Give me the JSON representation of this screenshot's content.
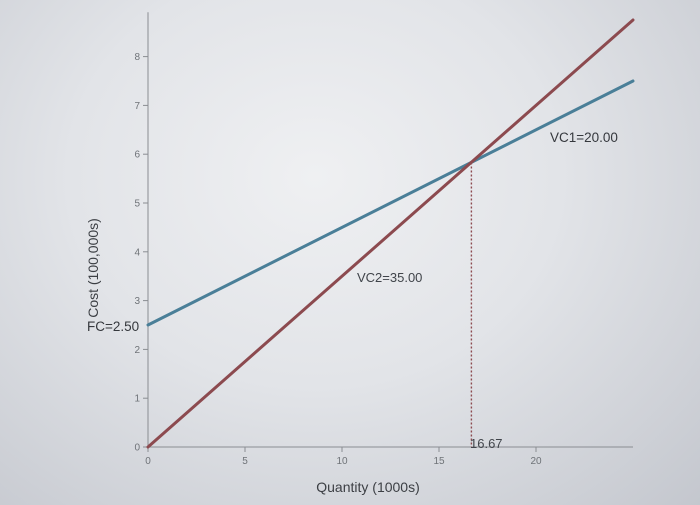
{
  "chart_data": {
    "type": "line",
    "xlabel": "Quantity (1000s)",
    "ylabel": "Cost (100,000s)",
    "xlim": [
      0,
      25
    ],
    "ylim": [
      0,
      8.5
    ],
    "x_ticks": [
      0,
      5,
      10,
      15,
      20
    ],
    "y_ticks": [
      0,
      1,
      2,
      3,
      4,
      5,
      6,
      7,
      8
    ],
    "grid": false,
    "series": [
      {
        "name": "VC1=20.00",
        "color": "#4a7f98",
        "x": [
          0,
          25
        ],
        "y": [
          2.5,
          7.5
        ]
      },
      {
        "name": "VC2=35.00",
        "color": "#8c4a4f",
        "x": [
          0,
          25
        ],
        "y": [
          0,
          8.75
        ]
      }
    ],
    "annotations": {
      "fixed_cost": "FC=2.50",
      "vc1": "VC1=20.00",
      "vc2": "VC2=35.00",
      "break_even": "16.67"
    },
    "break_even_point": {
      "x": 16.67,
      "y": 5.83
    }
  }
}
